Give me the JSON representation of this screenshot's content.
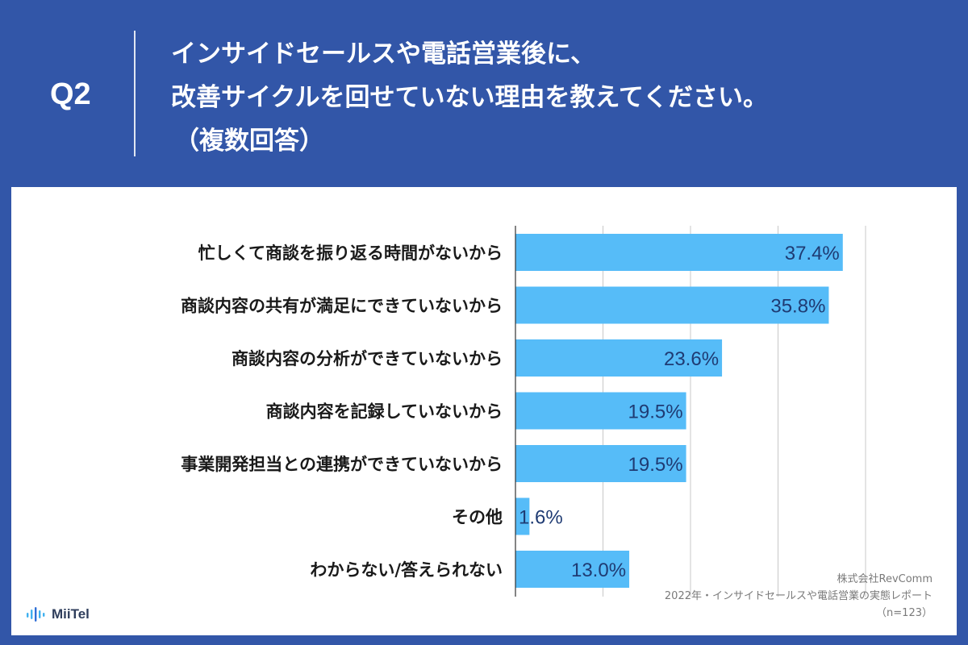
{
  "header": {
    "question_number": "Q2",
    "title_line1": "インサイドセールスや電話営業後に、",
    "title_line2": "改善サイクルを回せていない理由を教えてください。",
    "title_line3": "（複数回答）"
  },
  "source": {
    "company": "株式会社RevComm",
    "report": "2022年・インサイドセールスや電話営業の実態レポート",
    "sample": "（n=123）"
  },
  "logo": {
    "text": "MiiTel",
    "icon": "soundwave-icon"
  },
  "colors": {
    "background": "#3256a8",
    "bar": "#56bcf8",
    "value_label": "#1f3b73",
    "category_label": "#1a1a1a",
    "grid": "#c8c8c8"
  },
  "chart_data": {
    "type": "bar",
    "orientation": "horizontal",
    "title": "",
    "categories": [
      "忙しくて商談を振り返る時間がないから",
      "商談内容の共有が満足にできていないから",
      "商談内容の分析ができていないから",
      "商談内容を記録していないから",
      "事業開発担当との連携ができていないから",
      "その他",
      "わからない/答えられない"
    ],
    "values": [
      37.4,
      35.8,
      23.6,
      19.5,
      19.5,
      1.6,
      13.0
    ],
    "value_labels": [
      "37.4%",
      "35.8%",
      "23.6%",
      "19.5%",
      "19.5%",
      "1.6%",
      "13.0%"
    ],
    "unit": "%",
    "xlim": [
      0,
      40
    ],
    "grid": true,
    "gridline_values": [
      10,
      20,
      30,
      40
    ]
  }
}
